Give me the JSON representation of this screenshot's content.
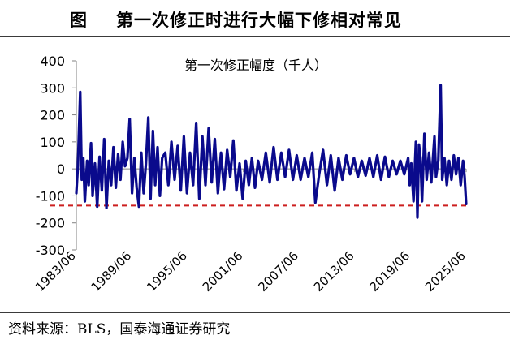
{
  "header": {
    "figure_label": "图",
    "title": "第一次修正时进行大幅下修相对常见"
  },
  "footer": {
    "source": "资料来源：BLS，国泰海通证券研究"
  },
  "colors": {
    "series": "#0a0a8c",
    "reference_line": "#cc1f1f",
    "text": "#000000"
  },
  "chart_data": {
    "type": "line",
    "title": "第一次修正幅度（千人）",
    "xlabel": "",
    "ylabel": "",
    "ylim": [
      -300,
      400
    ],
    "yticks": [
      -300,
      -200,
      -100,
      0,
      100,
      200,
      300,
      400
    ],
    "ytick_labels": [
      "-300",
      "-200",
      "-100",
      "0",
      "100",
      "200",
      "300",
      "400"
    ],
    "xlim": [
      "1983-06",
      "2025-06"
    ],
    "xticks": [
      "1983-06",
      "1989-06",
      "1995-06",
      "2001-06",
      "2007-06",
      "2013-06",
      "2019-06",
      "2025-06"
    ],
    "xtick_labels": [
      "1983/06",
      "1989/06",
      "1995/06",
      "2001/06",
      "2007/06",
      "2013/06",
      "2019/06",
      "2025/06"
    ],
    "grid": false,
    "reference_line": {
      "y": -136,
      "style": "dashed"
    },
    "series": [
      {
        "values": [
          [
            "1983-06",
            -90
          ],
          [
            "1983-08",
            10
          ],
          [
            "1983-11",
            285
          ],
          [
            "1984-01",
            -40
          ],
          [
            "1984-03",
            40
          ],
          [
            "1984-05",
            -120
          ],
          [
            "1984-08",
            30
          ],
          [
            "1984-10",
            -60
          ],
          [
            "1985-01",
            95
          ],
          [
            "1985-03",
            -100
          ],
          [
            "1985-06",
            20
          ],
          [
            "1985-09",
            -140
          ],
          [
            "1985-12",
            45
          ],
          [
            "1986-03",
            -80
          ],
          [
            "1986-06",
            110
          ],
          [
            "1986-09",
            -145
          ],
          [
            "1986-12",
            30
          ],
          [
            "1987-03",
            -60
          ],
          [
            "1987-06",
            80
          ],
          [
            "1987-09",
            -70
          ],
          [
            "1987-12",
            55
          ],
          [
            "1988-03",
            -40
          ],
          [
            "1988-06",
            100
          ],
          [
            "1988-09",
            10
          ],
          [
            "1988-12",
            40
          ],
          [
            "1989-03",
            185
          ],
          [
            "1989-06",
            -90
          ],
          [
            "1989-09",
            40
          ],
          [
            "1989-12",
            -70
          ],
          [
            "1990-03",
            -140
          ],
          [
            "1990-06",
            60
          ],
          [
            "1990-09",
            -90
          ],
          [
            "1990-12",
            20
          ],
          [
            "1991-03",
            190
          ],
          [
            "1991-06",
            -110
          ],
          [
            "1991-09",
            140
          ],
          [
            "1991-12",
            -60
          ],
          [
            "1992-03",
            80
          ],
          [
            "1992-06",
            -100
          ],
          [
            "1992-09",
            40
          ],
          [
            "1993-01",
            60
          ],
          [
            "1993-05",
            -60
          ],
          [
            "1993-09",
            100
          ],
          [
            "1994-01",
            -40
          ],
          [
            "1994-05",
            85
          ],
          [
            "1994-09",
            -80
          ],
          [
            "1995-01",
            120
          ],
          [
            "1995-05",
            -90
          ],
          [
            "1995-09",
            60
          ],
          [
            "1996-01",
            -60
          ],
          [
            "1996-05",
            170
          ],
          [
            "1996-09",
            -110
          ],
          [
            "1997-01",
            120
          ],
          [
            "1997-05",
            -60
          ],
          [
            "1997-09",
            150
          ],
          [
            "1998-01",
            -50
          ],
          [
            "1998-05",
            110
          ],
          [
            "1998-09",
            -90
          ],
          [
            "1999-01",
            60
          ],
          [
            "1999-05",
            -75
          ],
          [
            "1999-09",
            70
          ],
          [
            "2000-01",
            -30
          ],
          [
            "2000-05",
            105
          ],
          [
            "2000-09",
            -80
          ],
          [
            "2001-01",
            20
          ],
          [
            "2001-05",
            -110
          ],
          [
            "2001-09",
            30
          ],
          [
            "2002-01",
            -60
          ],
          [
            "2002-05",
            40
          ],
          [
            "2002-09",
            -70
          ],
          [
            "2003-01",
            30
          ],
          [
            "2003-06",
            -40
          ],
          [
            "2003-11",
            60
          ],
          [
            "2004-04",
            -50
          ],
          [
            "2004-09",
            80
          ],
          [
            "2005-02",
            -40
          ],
          [
            "2005-07",
            60
          ],
          [
            "2005-12",
            -30
          ],
          [
            "2006-05",
            70
          ],
          [
            "2006-10",
            -40
          ],
          [
            "2007-03",
            50
          ],
          [
            "2007-08",
            -40
          ],
          [
            "2008-01",
            40
          ],
          [
            "2008-06",
            -30
          ],
          [
            "2008-11",
            60
          ],
          [
            "2009-03",
            -125
          ],
          [
            "2009-08",
            -20
          ],
          [
            "2010-01",
            70
          ],
          [
            "2010-06",
            -60
          ],
          [
            "2010-11",
            50
          ],
          [
            "2011-04",
            -80
          ],
          [
            "2011-09",
            40
          ],
          [
            "2012-02",
            -40
          ],
          [
            "2012-07",
            50
          ],
          [
            "2012-12",
            -20
          ],
          [
            "2013-05",
            40
          ],
          [
            "2013-10",
            -30
          ],
          [
            "2014-03",
            30
          ],
          [
            "2014-08",
            -25
          ],
          [
            "2015-01",
            40
          ],
          [
            "2015-06",
            -30
          ],
          [
            "2015-11",
            50
          ],
          [
            "2016-04",
            -40
          ],
          [
            "2016-09",
            45
          ],
          [
            "2017-02",
            -30
          ],
          [
            "2017-07",
            30
          ],
          [
            "2017-12",
            -20
          ],
          [
            "2018-05",
            30
          ],
          [
            "2018-10",
            -20
          ],
          [
            "2019-03",
            40
          ],
          [
            "2019-05",
            -60
          ],
          [
            "2019-07",
            20
          ],
          [
            "2019-10",
            -120
          ],
          [
            "2020-01",
            100
          ],
          [
            "2020-03",
            -180
          ],
          [
            "2020-05",
            90
          ],
          [
            "2020-07",
            40
          ],
          [
            "2020-09",
            -120
          ],
          [
            "2020-12",
            130
          ],
          [
            "2021-03",
            -40
          ],
          [
            "2021-06",
            60
          ],
          [
            "2021-09",
            -50
          ],
          [
            "2022-01",
            120
          ],
          [
            "2022-03",
            -30
          ],
          [
            "2022-06",
            30
          ],
          [
            "2022-09",
            310
          ],
          [
            "2022-11",
            -40
          ],
          [
            "2023-02",
            40
          ],
          [
            "2023-05",
            -60
          ],
          [
            "2023-08",
            30
          ],
          [
            "2023-11",
            -40
          ],
          [
            "2024-02",
            50
          ],
          [
            "2024-05",
            -20
          ],
          [
            "2024-08",
            40
          ],
          [
            "2024-11",
            -60
          ],
          [
            "2025-02",
            30
          ],
          [
            "2025-04",
            -30
          ],
          [
            "2025-06",
            -130
          ]
        ]
      }
    ]
  }
}
